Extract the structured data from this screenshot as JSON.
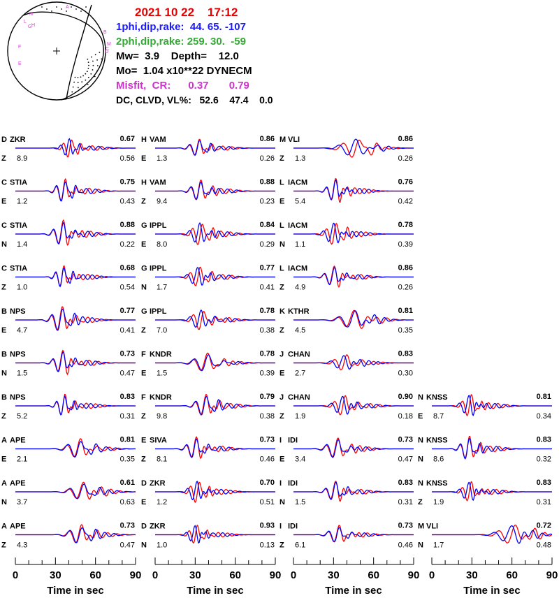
{
  "header": {
    "datetime": "2021 10 22    17:12",
    "plane1": "1phi,dip,rake:  44. 65. -107",
    "plane2": "2phi,dip,rake: 259. 30.  -59",
    "mw_depth": "Mw=  3.9    Depth=    12.0",
    "mo": "Mo=  1.04 x10**22 DYNECM",
    "misfit": "Misfit,  CR:      0.37       0.79",
    "dcclvd": "DC, CLVD, VL%:   52.6    47.4    0.0"
  },
  "beachball": {
    "station_labels": [
      "N",
      "A",
      "L",
      "B",
      "M",
      "F",
      "E",
      "H",
      "G",
      "C",
      "D"
    ]
  },
  "colors": {
    "observed": "#ff0000",
    "synthetic": "#0000ff",
    "header_title": "#e60000"
  },
  "chart_data": {
    "type": "line",
    "title": "",
    "xlabel": "Time  in sec",
    "x_ticks": [
      0,
      30,
      60,
      90
    ],
    "xlim": [
      0,
      90
    ],
    "series_names": [
      "observed",
      "synthetic"
    ],
    "columns": [
      [
        {
          "letter": "D",
          "station": "ZKR",
          "comp": "Z",
          "dist": "8.9",
          "cc": "0.67",
          "misfit": "0.56",
          "t0": 40,
          "w": 2.0,
          "amp": 12
        },
        {
          "letter": "C",
          "station": "STIA",
          "comp": "E",
          "dist": "1.2",
          "cc": "0.75",
          "misfit": "0.43",
          "t0": 36,
          "w": 2.2,
          "amp": 15
        },
        {
          "letter": "C",
          "station": "STIA",
          "comp": "N",
          "dist": "1.4",
          "cc": "0.88",
          "misfit": "0.22",
          "t0": 35,
          "w": 2.4,
          "amp": 16
        },
        {
          "letter": "C",
          "station": "STIA",
          "comp": "Z",
          "dist": "1.0",
          "cc": "0.68",
          "misfit": "0.54",
          "t0": 35,
          "w": 2.0,
          "amp": 14
        },
        {
          "letter": "B",
          "station": "NPS",
          "comp": "E",
          "dist": "4.7",
          "cc": "0.77",
          "misfit": "0.41",
          "t0": 34,
          "w": 2.6,
          "amp": 16
        },
        {
          "letter": "B",
          "station": "NPS",
          "comp": "N",
          "dist": "1.5",
          "cc": "0.73",
          "misfit": "0.47",
          "t0": 35,
          "w": 2.4,
          "amp": 15
        },
        {
          "letter": "B",
          "station": "NPS",
          "comp": "Z",
          "dist": "5.2",
          "cc": "0.83",
          "misfit": "0.31",
          "t0": 36,
          "w": 2.0,
          "amp": 14
        },
        {
          "letter": "A",
          "station": "APE",
          "comp": "E",
          "dist": "2.1",
          "cc": "0.81",
          "misfit": "0.35",
          "t0": 47,
          "w": 3.2,
          "amp": 12
        },
        {
          "letter": "A",
          "station": "APE",
          "comp": "N",
          "dist": "3.7",
          "cc": "0.61",
          "misfit": "0.63",
          "t0": 50,
          "w": 3.4,
          "amp": 11
        },
        {
          "letter": "A",
          "station": "APE",
          "comp": "Z",
          "dist": "4.3",
          "cc": "0.73",
          "misfit": "0.47",
          "t0": 48,
          "w": 3.0,
          "amp": 12
        }
      ],
      [
        {
          "letter": "H",
          "station": "VAM",
          "comp": "E",
          "dist": "1.3",
          "cc": "0.86",
          "misfit": "0.26",
          "t0": 32,
          "w": 2.4,
          "amp": 11
        },
        {
          "letter": "H",
          "station": "VAM",
          "comp": "Z",
          "dist": "9.4",
          "cc": "0.88",
          "misfit": "0.23",
          "t0": 33,
          "w": 2.4,
          "amp": 13
        },
        {
          "letter": "G",
          "station": "IPPL",
          "comp": "E",
          "dist": "8.0",
          "cc": "0.84",
          "misfit": "0.29",
          "t0": 33,
          "w": 2.4,
          "amp": 14
        },
        {
          "letter": "G",
          "station": "IPPL",
          "comp": "N",
          "dist": "1.7",
          "cc": "0.77",
          "misfit": "0.41",
          "t0": 32,
          "w": 2.4,
          "amp": 13
        },
        {
          "letter": "G",
          "station": "IPPL",
          "comp": "Z",
          "dist": "7.0",
          "cc": "0.78",
          "misfit": "0.38",
          "t0": 34,
          "w": 2.6,
          "amp": 13
        },
        {
          "letter": "F",
          "station": "KNDR",
          "comp": "E",
          "dist": "1.5",
          "cc": "0.78",
          "misfit": "0.39",
          "t0": 38,
          "w": 3.4,
          "amp": 12
        },
        {
          "letter": "F",
          "station": "KNDR",
          "comp": "Z",
          "dist": "9.8",
          "cc": "0.79",
          "misfit": "0.38",
          "t0": 37,
          "w": 2.6,
          "amp": 14
        },
        {
          "letter": "E",
          "station": "SIVA",
          "comp": "Z",
          "dist": "8.1",
          "cc": "0.73",
          "misfit": "0.46",
          "t0": 30,
          "w": 2.4,
          "amp": 14
        },
        {
          "letter": "D",
          "station": "ZKR",
          "comp": "E",
          "dist": "1.2",
          "cc": "0.70",
          "misfit": "0.51",
          "t0": 31,
          "w": 2.2,
          "amp": 14
        },
        {
          "letter": "D",
          "station": "ZKR",
          "comp": "N",
          "dist": "1.0",
          "cc": "0.93",
          "misfit": "0.13",
          "t0": 30,
          "w": 2.0,
          "amp": 12
        }
      ],
      [
        {
          "letter": "M",
          "station": "VLI",
          "comp": "Z",
          "dist": "1.3",
          "cc": "0.86",
          "misfit": "0.26",
          "t0": 46,
          "w": 4.0,
          "amp": 12
        },
        {
          "letter": "L",
          "station": "IACM",
          "comp": "E",
          "dist": "5.4",
          "cc": "0.76",
          "misfit": "0.42",
          "t0": 31,
          "w": 2.2,
          "amp": 15
        },
        {
          "letter": "L",
          "station": "IACM",
          "comp": "N",
          "dist": "1.1",
          "cc": "0.78",
          "misfit": "0.39",
          "t0": 30,
          "w": 2.4,
          "amp": 14
        },
        {
          "letter": "L",
          "station": "IACM",
          "comp": "Z",
          "dist": "4.9",
          "cc": "0.86",
          "misfit": "0.26",
          "t0": 30,
          "w": 2.4,
          "amp": 13
        },
        {
          "letter": "K",
          "station": "KTHR",
          "comp": "Z",
          "dist": "4.5",
          "cc": "0.81",
          "misfit": "0.35",
          "t0": 45,
          "w": 3.8,
          "amp": 12
        },
        {
          "letter": "J",
          "station": "CHAN",
          "comp": "E",
          "dist": "2.7",
          "cc": "0.83",
          "misfit": "0.30",
          "t0": 38,
          "w": 3.0,
          "amp": 10
        },
        {
          "letter": "J",
          "station": "CHAN",
          "comp": "Z",
          "dist": "1.9",
          "cc": "0.90",
          "misfit": "0.18",
          "t0": 37,
          "w": 2.6,
          "amp": 13
        },
        {
          "letter": "I",
          "station": "IDI",
          "comp": "E",
          "dist": "3.4",
          "cc": "0.73",
          "misfit": "0.47",
          "t0": 32,
          "w": 2.8,
          "amp": 13
        },
        {
          "letter": "I",
          "station": "IDI",
          "comp": "N",
          "dist": "1.5",
          "cc": "0.83",
          "misfit": "0.31",
          "t0": 31,
          "w": 2.4,
          "amp": 13
        },
        {
          "letter": "I",
          "station": "IDI",
          "comp": "Z",
          "dist": "6.1",
          "cc": "0.73",
          "misfit": "0.46",
          "t0": 33,
          "w": 2.6,
          "amp": 11
        }
      ],
      [
        null,
        null,
        null,
        null,
        null,
        null,
        {
          "letter": "N",
          "station": "KNSS",
          "comp": "E",
          "dist": "8.7",
          "cc": "0.81",
          "misfit": "0.34",
          "t0": 28,
          "w": 2.2,
          "amp": 14
        },
        {
          "letter": "N",
          "station": "KNSS",
          "comp": "N",
          "dist": "8.6",
          "cc": "0.83",
          "misfit": "0.32",
          "t0": 27,
          "w": 2.2,
          "amp": 15
        },
        {
          "letter": "N",
          "station": "KNSS",
          "comp": "Z",
          "dist": "1.9",
          "cc": "0.83",
          "misfit": "0.31",
          "t0": 28,
          "w": 2.2,
          "amp": 13
        },
        {
          "letter": "M",
          "station": "VLI",
          "comp": "N",
          "dist": "1.7",
          "cc": "0.72",
          "misfit": "0.48",
          "t0": 60,
          "w": 4.0,
          "amp": 12
        }
      ]
    ]
  }
}
